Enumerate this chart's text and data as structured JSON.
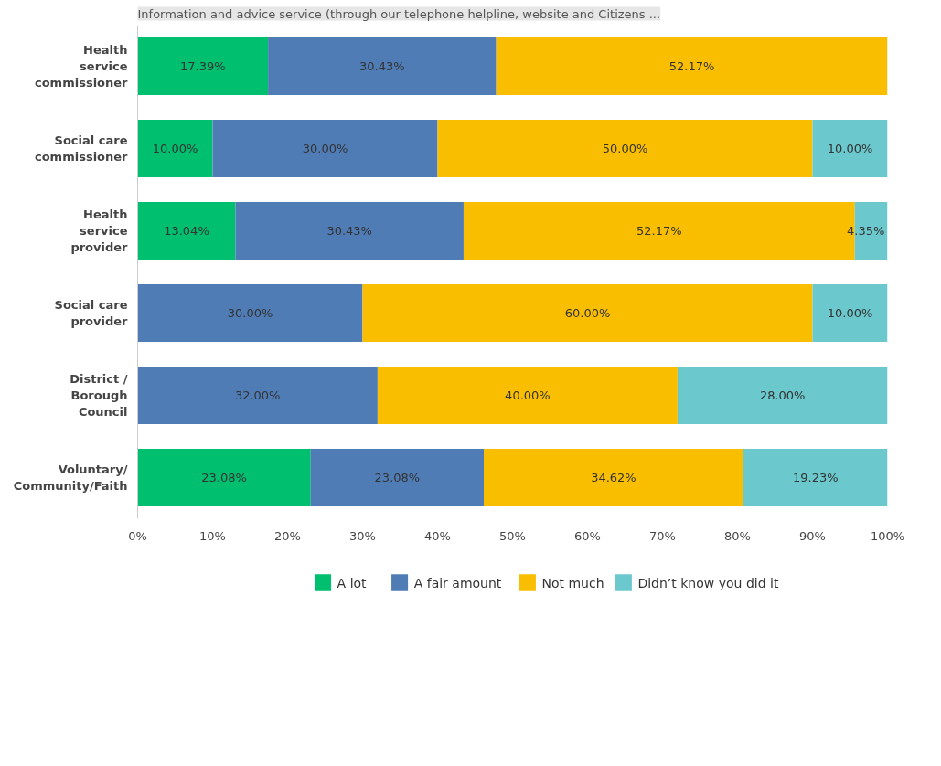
{
  "chart_data": {
    "type": "bar",
    "orientation": "horizontal",
    "stacked": true,
    "title": "Information and advice service (through our telephone helpline, website and Citizens ...",
    "categories": [
      "Health service commissioner",
      "Social care commissioner",
      "Health service provider",
      "Social care provider",
      "District / Borough Council",
      "Voluntary/ Community/Faith"
    ],
    "series": [
      {
        "name": "A lot",
        "color": "#00bf6f",
        "values": [
          17.39,
          10.0,
          13.04,
          null,
          null,
          23.08
        ],
        "value_labels": [
          "17.39%",
          "10.00%",
          "13.04%",
          null,
          null,
          "23.08%"
        ]
      },
      {
        "name": "A fair amount",
        "color": "#507cb6",
        "values": [
          30.43,
          30.0,
          30.43,
          30.0,
          32.0,
          23.08
        ],
        "value_labels": [
          "30.43%",
          "30.00%",
          "30.43%",
          "30.00%",
          "32.00%",
          "23.08%"
        ]
      },
      {
        "name": "Not much",
        "color": "#f9be00",
        "values": [
          52.17,
          50.0,
          52.17,
          60.0,
          40.0,
          34.62
        ],
        "value_labels": [
          "52.17%",
          "50.00%",
          "52.17%",
          "60.00%",
          "40.00%",
          "34.62%"
        ]
      },
      {
        "name": "Didn’t know you did it",
        "color": "#6bc8cd",
        "values": [
          null,
          10.0,
          4.35,
          10.0,
          28.0,
          19.23
        ],
        "value_labels": [
          null,
          "10.00%",
          "4.35%",
          "10.00%",
          "28.00%",
          "19.23%"
        ]
      }
    ],
    "xlim": [
      0,
      100
    ],
    "xticks": [
      {
        "value": 0,
        "label": "0%"
      },
      {
        "value": 10,
        "label": "10%"
      },
      {
        "value": 20,
        "label": "20%"
      },
      {
        "value": 30,
        "label": "30%"
      },
      {
        "value": 40,
        "label": "40%"
      },
      {
        "value": 50,
        "label": "50%"
      },
      {
        "value": 60,
        "label": "60%"
      },
      {
        "value": 70,
        "label": "70%"
      },
      {
        "value": 80,
        "label": "80%"
      },
      {
        "value": 90,
        "label": "90%"
      },
      {
        "value": 100,
        "label": "100%"
      }
    ],
    "grid": false,
    "legend": "bottom"
  }
}
